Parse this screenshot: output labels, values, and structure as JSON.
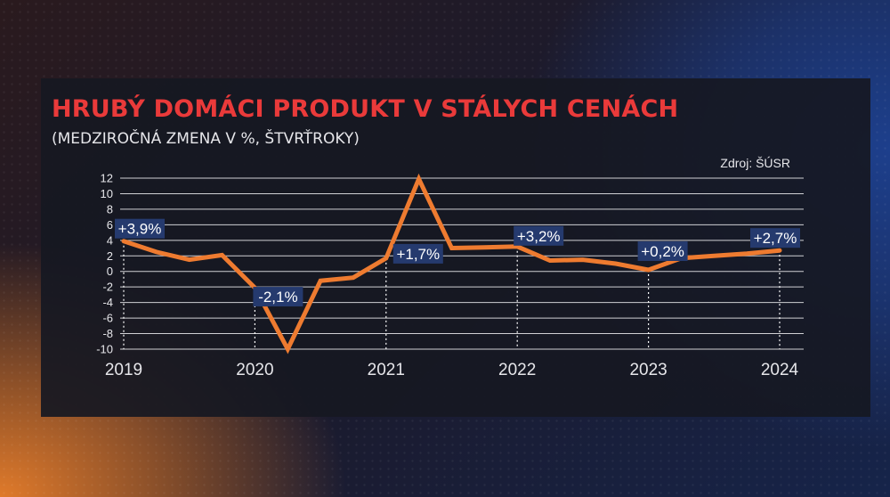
{
  "title": "HRUBÝ DOMÁCI PRODUKT V STÁLYCH CENÁCH",
  "subtitle": "(MEDZIROČNÁ ZMENA V %, ŠTVRŤROKY)",
  "source": "Zdroj: ŠÚSR",
  "colors": {
    "line": "#ee7b30",
    "title": "#ea3a3a",
    "label_bg": "#253a6e",
    "grid": "#d0d0d4",
    "text": "#e6e6ea"
  },
  "chart_data": {
    "type": "line",
    "title": "HRUBÝ DOMÁCI PRODUKT V STÁLYCH CENÁCH",
    "subtitle": "(MEDZIROČNÁ ZMENA V %, ŠTVRŤROKY)",
    "xlabel": "",
    "ylabel": "",
    "ylim": [
      -10,
      12
    ],
    "yticks": [
      12,
      10,
      8,
      6,
      4,
      2,
      0,
      -2,
      -4,
      -6,
      -8,
      -10
    ],
    "ytick_labels": [
      "12",
      "10",
      "8",
      "6",
      "4",
      "2",
      "0",
      "-2",
      "-4",
      "-6",
      "-8",
      "-10"
    ],
    "xticks": [
      "2019",
      "2020",
      "2021",
      "2022",
      "2023",
      "2024"
    ],
    "grid": true,
    "series": [
      {
        "x": [
          "2019",
          "2019-Q2",
          "2019-Q3",
          "2019-Q4",
          "2020",
          "2020-Q2",
          "2020-Q3",
          "2020-Q4",
          "2021",
          "2021-Q2",
          "2021-Q3",
          "2021-Q4",
          "2022",
          "2022-Q2",
          "2022-Q3",
          "2022-Q4",
          "2023",
          "2023-Q2",
          "2023-Q3",
          "2023-Q4",
          "2024"
        ],
        "values": [
          3.9,
          2.5,
          1.5,
          2.1,
          -2.1,
          -10.0,
          -1.2,
          -0.8,
          1.7,
          11.9,
          3.0,
          3.1,
          3.2,
          1.4,
          1.5,
          1.0,
          0.2,
          1.7,
          2.0,
          2.3,
          2.7
        ]
      }
    ],
    "annotations": [
      {
        "x": "2019",
        "y": 3.9,
        "text": "+3,9%"
      },
      {
        "x": "2020",
        "y": -2.1,
        "text": "-2,1%"
      },
      {
        "x": "2021",
        "y": 1.7,
        "text": "+1,7%"
      },
      {
        "x": "2022",
        "y": 3.2,
        "text": "+3,2%"
      },
      {
        "x": "2023",
        "y": 0.2,
        "text": "+0,2%"
      },
      {
        "x": "2024",
        "y": 2.7,
        "text": "+2,7%"
      }
    ]
  }
}
